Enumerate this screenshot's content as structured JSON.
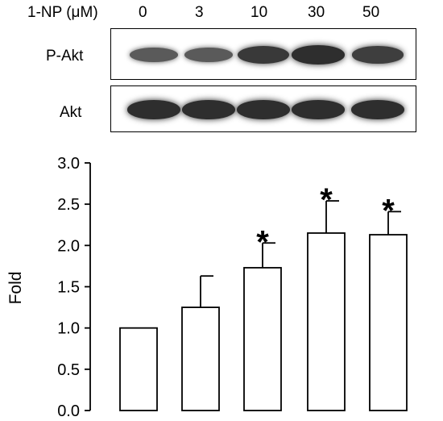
{
  "blot": {
    "dose_label": "1-NP (μM)",
    "doses": [
      "0",
      "3",
      "10",
      "30",
      "50"
    ],
    "rows": [
      {
        "label": "P-Akt",
        "band_intensity": [
          0.55,
          0.55,
          0.85,
          0.95,
          0.8
        ]
      },
      {
        "label": "Akt",
        "band_intensity": [
          0.95,
          0.95,
          0.95,
          0.95,
          0.95
        ]
      }
    ]
  },
  "chart_data": {
    "type": "bar",
    "categories": [
      "0",
      "3",
      "10",
      "30",
      "50"
    ],
    "values": [
      1.0,
      1.25,
      1.73,
      2.15,
      2.13
    ],
    "errors": [
      0,
      0.38,
      0.3,
      0.39,
      0.28
    ],
    "significance": [
      "",
      "",
      "*",
      "*",
      "*"
    ],
    "ylabel": "Fold",
    "ylim": [
      0,
      3.0
    ],
    "yticks": [
      "0.0",
      "0.5",
      "1.0",
      "1.5",
      "2.0",
      "2.5",
      "3.0"
    ],
    "bar_fill": "#ffffff",
    "bar_stroke": "#000000",
    "grid": false
  }
}
